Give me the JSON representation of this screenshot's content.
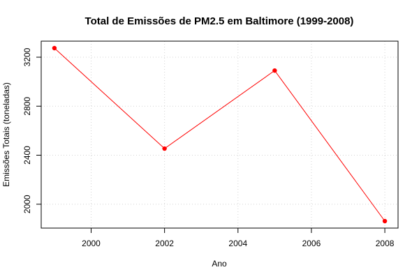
{
  "chart_data": {
    "type": "line",
    "title": "Total de Emissões de PM2.5 em Baltimore (1999-2008)",
    "xlabel": "Ano",
    "ylabel": "Emissões Totais (toneladas)",
    "x": [
      1999,
      2002,
      2005,
      2008
    ],
    "series": [
      {
        "values": [
          3274,
          2454,
          3091,
          1862
        ],
        "color": "#ff0000",
        "marker": "filled-circle"
      }
    ],
    "xlim": [
      1998.64,
      2008.36
    ],
    "ylim": [
      1805,
      3331
    ],
    "xticks": [
      2000,
      2002,
      2004,
      2006,
      2008
    ],
    "yticks": [
      2000,
      2400,
      2800,
      3200
    ],
    "xtick_labels": [
      "2000",
      "2002",
      "2004",
      "2006",
      "2008"
    ],
    "ytick_labels": [
      "2000",
      "2400",
      "2800",
      "3200"
    ],
    "grid": true,
    "grid_style": "dotted",
    "grid_color": "#d3d3d3",
    "legend": "none"
  }
}
